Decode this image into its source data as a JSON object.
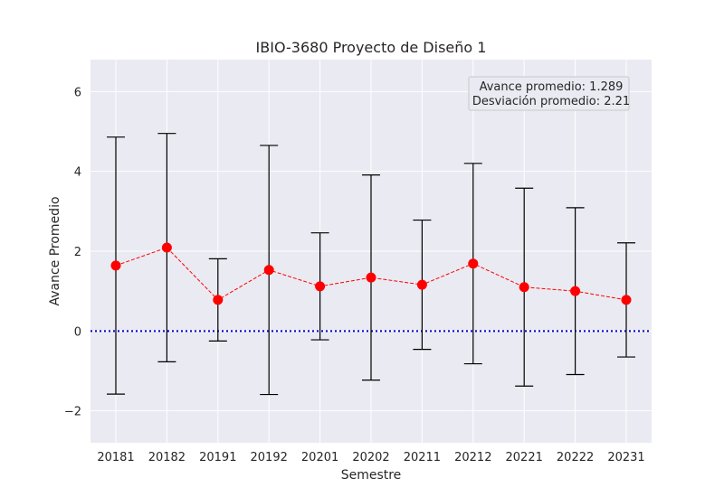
{
  "chart_data": {
    "type": "line",
    "title": "IBIO-3680 Proyecto de Diseño 1",
    "xlabel": "Semestre",
    "ylabel": "Avance Promedio",
    "categories": [
      "20181",
      "20182",
      "20191",
      "20192",
      "20201",
      "20202",
      "20211",
      "20212",
      "20221",
      "20222",
      "20231"
    ],
    "series": [
      {
        "values": [
          1.64,
          2.09,
          0.78,
          1.53,
          1.12,
          1.34,
          1.16,
          1.69,
          1.1,
          1.0,
          0.78
        ],
        "error": [
          3.22,
          2.86,
          1.03,
          3.12,
          1.34,
          2.57,
          1.62,
          2.51,
          2.48,
          2.09,
          1.43
        ],
        "color": "#ff0000",
        "error_color": "#000000"
      }
    ],
    "reference_line": {
      "y": 0,
      "color": "#0000cc",
      "style": "dotted"
    },
    "annotation": [
      "Avance promedio: 1.289",
      "Desviación promedio: 2.21"
    ],
    "ylim": [
      -2.8,
      6.8
    ],
    "yticks": [
      -2,
      0,
      2,
      4,
      6
    ],
    "ytick_labels": [
      "−2",
      "0",
      "2",
      "4",
      "6"
    ],
    "grid": true,
    "background": "#eaeaf2"
  }
}
